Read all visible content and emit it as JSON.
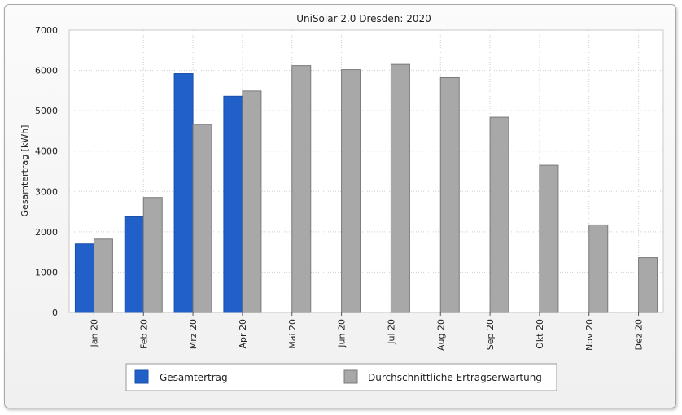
{
  "chart_data": {
    "type": "bar",
    "title": "UniSolar 2.0 Dresden: 2020",
    "xlabel": "",
    "ylabel": "Gesamtertrag [kWh]",
    "ylim": [
      0,
      7000
    ],
    "yticks": [
      0,
      1000,
      2000,
      3000,
      4000,
      5000,
      6000,
      7000
    ],
    "categories": [
      "Jan 20",
      "Feb 20",
      "Mrz 20",
      "Apr 20",
      "Mai 20",
      "Jun 20",
      "Jul 20",
      "Aug 20",
      "Sep 20",
      "Okt 20",
      "Nov 20",
      "Dez 20"
    ],
    "grid": true,
    "legend_position": "bottom",
    "series": [
      {
        "name": "Gesamtertrag",
        "color": "#2060c8",
        "values": [
          1700,
          2370,
          5920,
          5360,
          null,
          null,
          null,
          null,
          null,
          null,
          null,
          null
        ]
      },
      {
        "name": "Durchschnittliche Ertragserwartung",
        "color": "#a8a8a8",
        "values": [
          1820,
          2850,
          4660,
          5490,
          6120,
          6020,
          6150,
          5820,
          4840,
          3650,
          2170,
          1360
        ]
      }
    ]
  }
}
